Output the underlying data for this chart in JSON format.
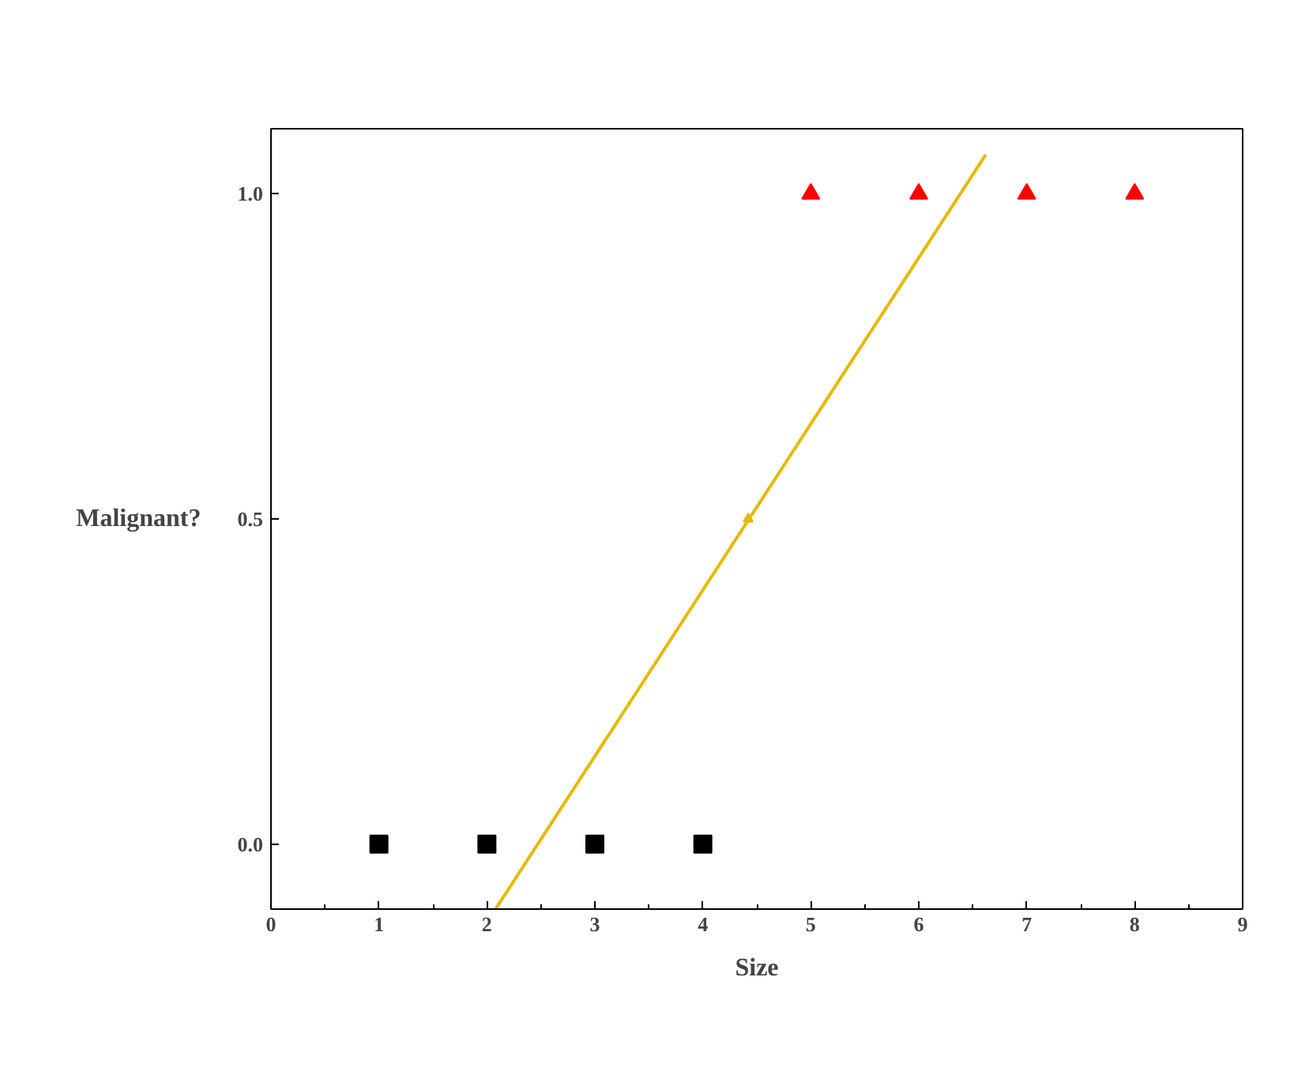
{
  "chart_data": {
    "type": "scatter",
    "xlabel": "Size",
    "ylabel": "Malignant?",
    "xlim": [
      0,
      9
    ],
    "ylim": [
      -0.1,
      1.1
    ],
    "xticks": [
      0,
      1,
      2,
      3,
      4,
      5,
      6,
      7,
      8,
      9
    ],
    "yticks": [
      {
        "value": 0,
        "label": "0.0"
      },
      {
        "value": 0.5,
        "label": "0.5"
      },
      {
        "value": 1,
        "label": "1.0"
      }
    ],
    "grid": false,
    "series": [
      {
        "marker": "square",
        "color": "#000000",
        "x": [
          1,
          2,
          3,
          4
        ],
        "values": [
          0,
          0,
          0,
          0
        ]
      },
      {
        "marker": "triangle",
        "color": "#ff0000",
        "x": [
          5,
          6,
          7,
          8
        ],
        "values": [
          1,
          1,
          1,
          1
        ]
      },
      {
        "type": "line",
        "marker": "none",
        "line_style": "solid",
        "color": "#e8b800",
        "x": [
          2.08,
          6.62
        ],
        "values": [
          -0.1,
          1.06
        ]
      },
      {
        "marker": "triangle",
        "color": "#e8b800",
        "x": [
          4.42
        ],
        "values": [
          0.5
        ]
      }
    ]
  }
}
